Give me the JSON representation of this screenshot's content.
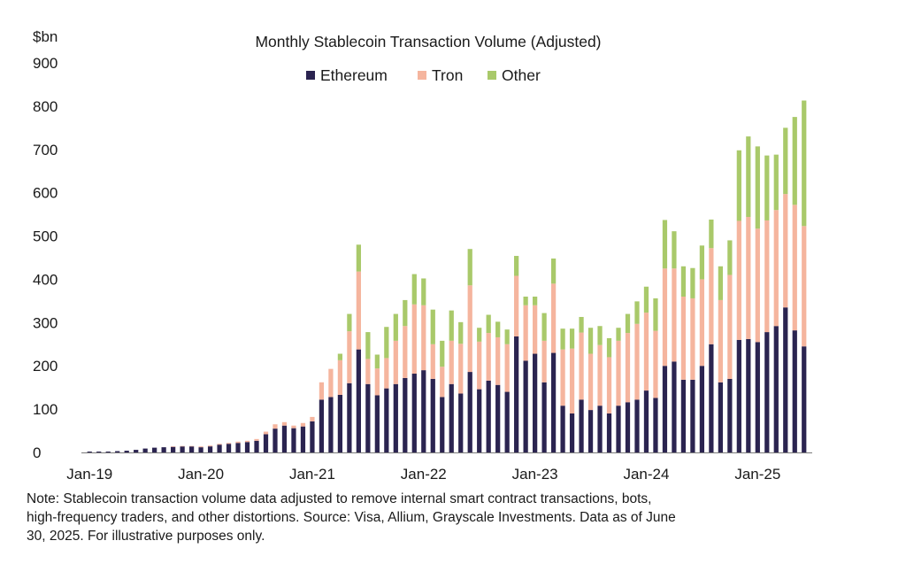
{
  "chart_data": {
    "type": "bar",
    "stacked": true,
    "title": "Monthly Stablecoin Transaction Volume (Adjusted)",
    "ylabel": "$bn",
    "xlabel": "",
    "ylim": [
      0,
      900
    ],
    "y_ticks": [
      "0",
      "100",
      "200",
      "300",
      "400",
      "500",
      "600",
      "700",
      "800",
      "900"
    ],
    "x_tick_labels": [
      {
        "label": "Jan-19",
        "month_index": 0
      },
      {
        "label": "Jan-20",
        "month_index": 12
      },
      {
        "label": "Jan-21",
        "month_index": 24
      },
      {
        "label": "Jan-22",
        "month_index": 36
      },
      {
        "label": "Jan-23",
        "month_index": 48
      },
      {
        "label": "Jan-24",
        "month_index": 60
      },
      {
        "label": "Jan-25",
        "month_index": 72
      }
    ],
    "legend_position": "top-center",
    "start_month": "Jan-19",
    "end_month": "Jun-25",
    "series": [
      {
        "name": "Ethereum",
        "color": "#2b2450",
        "values": [
          2,
          2,
          2,
          3,
          4,
          6,
          9,
          11,
          12,
          13,
          14,
          14,
          12,
          14,
          18,
          20,
          22,
          24,
          27,
          42,
          55,
          62,
          56,
          60,
          72,
          122,
          128,
          133,
          160,
          238,
          158,
          132,
          148,
          158,
          172,
          182,
          190,
          170,
          128,
          158,
          136,
          186,
          146,
          166,
          156,
          140,
          268,
          212,
          228,
          162,
          230,
          108,
          90,
          122,
          98,
          108,
          90,
          108,
          116,
          122,
          143,
          126,
          200,
          210,
          168,
          168,
          200,
          250,
          162,
          170,
          260,
          262,
          255,
          278,
          292,
          335,
          282,
          245
        ]
      },
      {
        "name": "Tron",
        "color": "#f5b59e",
        "values": [
          0,
          0,
          0,
          0,
          0,
          0,
          0,
          0,
          0,
          1,
          1,
          1,
          2,
          2,
          2,
          2,
          3,
          3,
          4,
          6,
          10,
          8,
          6,
          8,
          10,
          40,
          65,
          80,
          120,
          180,
          58,
          62,
          70,
          100,
          120,
          160,
          150,
          80,
          70,
          100,
          115,
          200,
          110,
          110,
          110,
          110,
          140,
          128,
          112,
          96,
          160,
          130,
          150,
          155,
          130,
          140,
          130,
          150,
          160,
          175,
          180,
          155,
          225,
          215,
          192,
          188,
          200,
          222,
          190,
          240,
          275,
          282,
          262,
          258,
          268,
          262,
          290,
          278
        ]
      },
      {
        "name": "Other",
        "color": "#a9c96a",
        "values": [
          0,
          0,
          0,
          0,
          0,
          0,
          0,
          0,
          0,
          0,
          0,
          0,
          0,
          0,
          0,
          0,
          0,
          0,
          0,
          0,
          0,
          0,
          0,
          0,
          0,
          0,
          0,
          15,
          40,
          62,
          62,
          32,
          72,
          62,
          60,
          70,
          62,
          80,
          60,
          70,
          50,
          84,
          32,
          42,
          36,
          34,
          46,
          20,
          20,
          64,
          58,
          48,
          46,
          36,
          60,
          44,
          44,
          30,
          44,
          52,
          60,
          75,
          112,
          86,
          70,
          70,
          78,
          66,
          78,
          80,
          163,
          186,
          190,
          150,
          128,
          153,
          203,
          290
        ]
      }
    ]
  },
  "note_lines": [
    "Note: Stablecoin transaction volume data adjusted to remove internal smart contract transactions, bots,",
    "high-frequency traders, and other distortions. Source: Visa, Allium, Grayscale Investments. Data as of June",
    "30, 2025. For illustrative purposes only."
  ]
}
